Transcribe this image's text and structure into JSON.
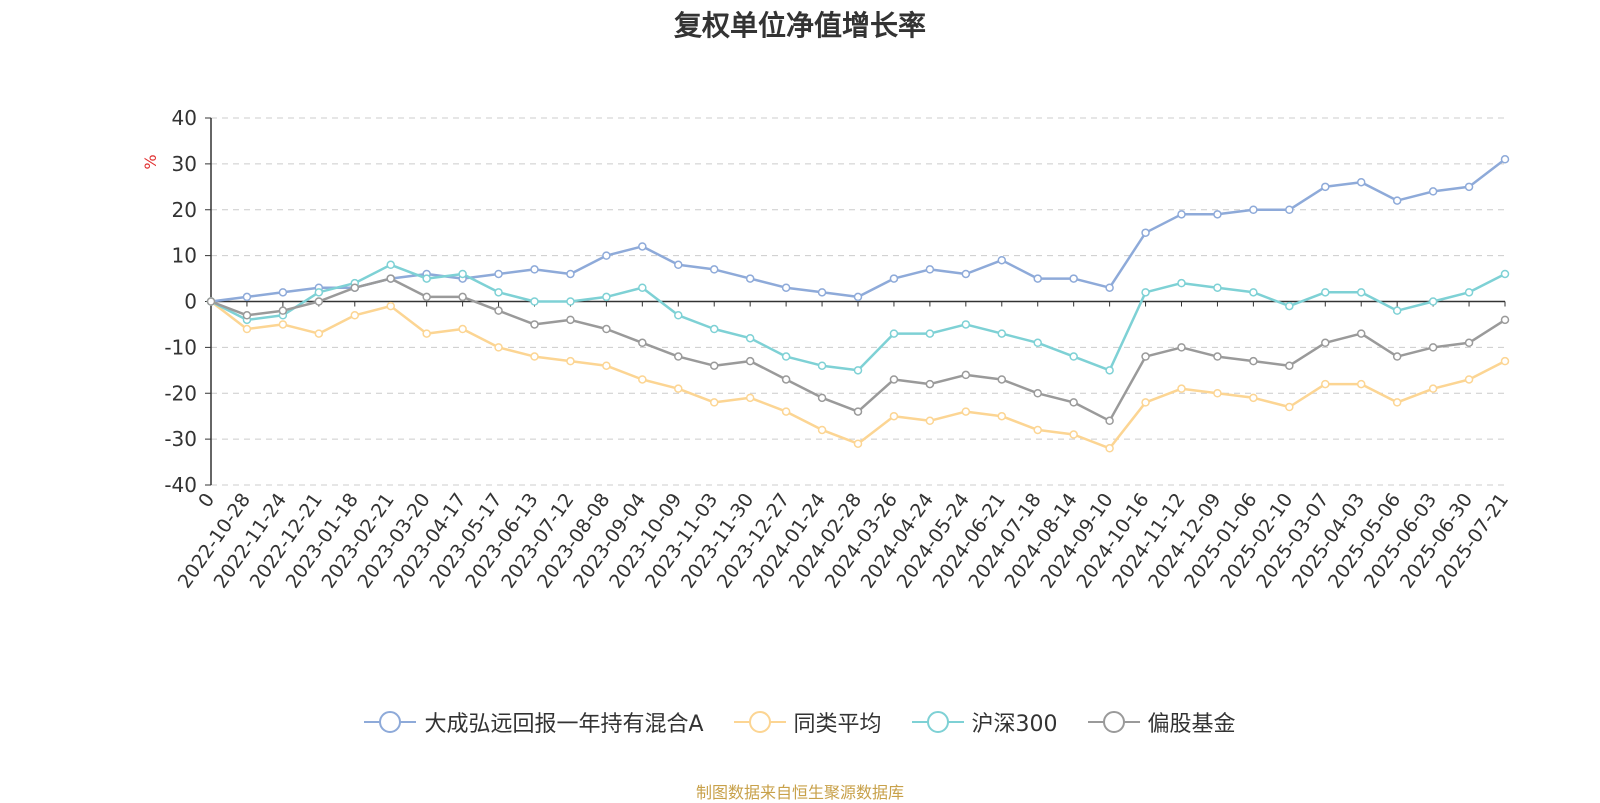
{
  "chart_data": {
    "type": "line",
    "title": "复权单位净值增长率",
    "ylabel": "%",
    "ylim": [
      -40,
      40
    ],
    "yticks": [
      40,
      30,
      20,
      10,
      0,
      -10,
      -20,
      -30,
      -40
    ],
    "grid": true,
    "legend_position": "bottom",
    "categories": [
      "0",
      "2022-10-28",
      "2022-11-24",
      "2022-12-21",
      "2023-01-18",
      "2023-02-21",
      "2023-03-20",
      "2023-04-17",
      "2023-05-17",
      "2023-06-13",
      "2023-07-12",
      "2023-08-08",
      "2023-09-04",
      "2023-10-09",
      "2023-11-03",
      "2023-11-30",
      "2023-12-27",
      "2024-01-24",
      "2024-02-28",
      "2024-03-26",
      "2024-04-24",
      "2024-05-24",
      "2024-06-21",
      "2024-07-18",
      "2024-08-14",
      "2024-09-10",
      "2024-10-16",
      "2024-11-12",
      "2024-12-09",
      "2025-01-06",
      "2025-02-10",
      "2025-03-07",
      "2025-04-03",
      "2025-05-06",
      "2025-06-03",
      "2025-06-30",
      "2025-07-21"
    ],
    "series": [
      {
        "name": "大成弘远回报一年持有混合A",
        "color": "#8eaad9",
        "values": [
          0,
          1,
          2,
          3,
          3,
          5,
          6,
          5,
          6,
          7,
          6,
          10,
          12,
          8,
          7,
          5,
          3,
          2,
          1,
          5,
          7,
          6,
          9,
          5,
          5,
          3,
          15,
          19,
          19,
          20,
          20,
          25,
          26,
          22,
          24,
          25,
          31
        ]
      },
      {
        "name": "同类平均",
        "color": "#fcd593",
        "values": [
          0,
          -6,
          -5,
          -7,
          -3,
          -1,
          -7,
          -6,
          -10,
          -12,
          -13,
          -14,
          -17,
          -19,
          -22,
          -21,
          -24,
          -28,
          -31,
          -25,
          -26,
          -24,
          -25,
          -28,
          -29,
          -32,
          -22,
          -19,
          -20,
          -21,
          -23,
          -18,
          -18,
          -22,
          -19,
          -17,
          -13
        ]
      },
      {
        "name": "沪深300",
        "color": "#7ed1d5",
        "values": [
          0,
          -4,
          -3,
          2,
          4,
          8,
          5,
          6,
          2,
          0,
          0,
          1,
          3,
          -3,
          -6,
          -8,
          -12,
          -14,
          -15,
          -7,
          -7,
          -5,
          -7,
          -9,
          -12,
          -15,
          2,
          4,
          3,
          2,
          -1,
          2,
          2,
          -2,
          0,
          2,
          6
        ]
      },
      {
        "name": "偏股基金",
        "color": "#9a9a9a",
        "values": [
          0,
          -3,
          -2,
          0,
          3,
          5,
          1,
          1,
          -2,
          -5,
          -4,
          -6,
          -9,
          -12,
          -14,
          -13,
          -17,
          -21,
          -24,
          -17,
          -18,
          -16,
          -17,
          -20,
          -22,
          -26,
          -12,
          -10,
          -12,
          -13,
          -14,
          -9,
          -7,
          -12,
          -10,
          -9,
          -4
        ]
      }
    ]
  },
  "legend": {
    "items": [
      "大成弘远回报一年持有混合A",
      "同类平均",
      "沪深300",
      "偏股基金"
    ]
  },
  "source": "制图数据来自恒生聚源数据库"
}
